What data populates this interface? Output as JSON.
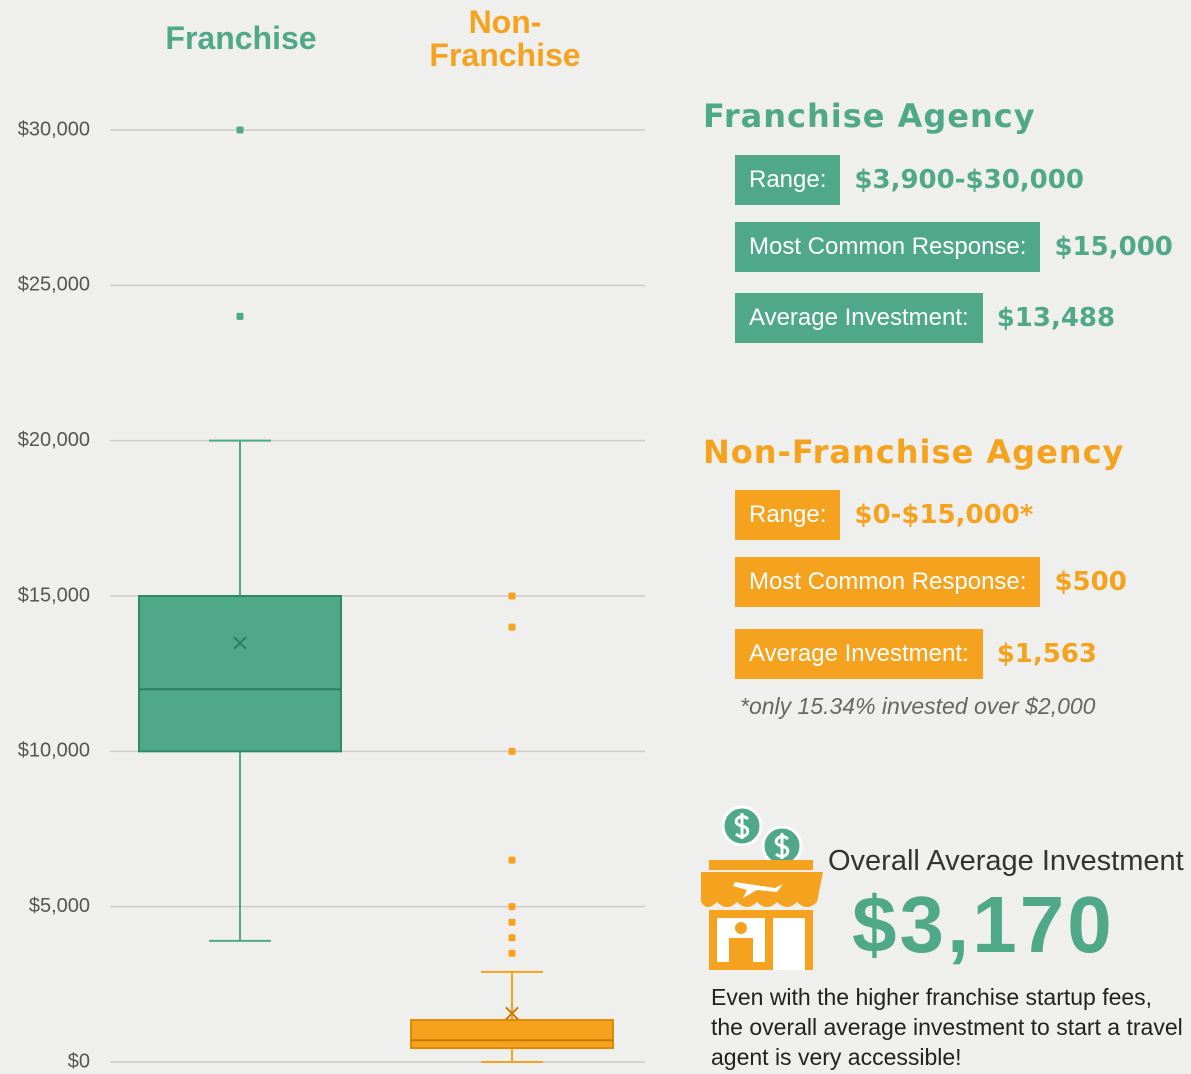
{
  "chart_data": {
    "type": "box",
    "categories": [
      "Franchise",
      "Non-Franchise"
    ],
    "colors": [
      "#4fa88a",
      "#f5a21e"
    ],
    "boxes": [
      {
        "min": 3900,
        "q1": 10000,
        "median": 12000,
        "q3": 15000,
        "max": 20000,
        "mean": 13488,
        "outliers": [
          24000,
          30000
        ]
      },
      {
        "min": 0,
        "q1": 450,
        "median": 700,
        "q3": 1350,
        "max": 2900,
        "mean": 1563,
        "outliers": [
          15000,
          14000,
          10000,
          6500,
          5000,
          4500,
          4000,
          3500
        ]
      }
    ],
    "ylim": [
      0,
      30000
    ],
    "yticks": [
      {
        "value": 0,
        "label": "$0"
      },
      {
        "value": 5000,
        "label": "$5,000"
      },
      {
        "value": 10000,
        "label": "$10,000"
      },
      {
        "value": 15000,
        "label": "$15,000"
      },
      {
        "value": 20000,
        "label": "$20,000"
      },
      {
        "value": 25000,
        "label": "$25,000"
      },
      {
        "value": 30000,
        "label": "$30,000"
      }
    ],
    "grid": true
  },
  "panels": [
    {
      "title": "Franchise Agency",
      "rows": [
        {
          "label": "Range:",
          "value": "$3,900-$30,000"
        },
        {
          "label": "Most Common Response:",
          "value": "$15,000"
        },
        {
          "label": "Average Investment:",
          "value": "$13,488"
        }
      ]
    },
    {
      "title": "Non-Franchise Agency",
      "rows": [
        {
          "label": "Range:",
          "value": "$0-$15,000*"
        },
        {
          "label": "Most Common Response:",
          "value": "$500"
        },
        {
          "label": "Average Investment:",
          "value": "$1,563"
        }
      ],
      "note": "*only 15.34% invested over $2,000"
    }
  ],
  "overall": {
    "title": "Overall Average Investment",
    "value": "$3,170",
    "text": "Even with the higher franchise startup fees, the overall average investment to start a travel agent is very accessible!"
  }
}
